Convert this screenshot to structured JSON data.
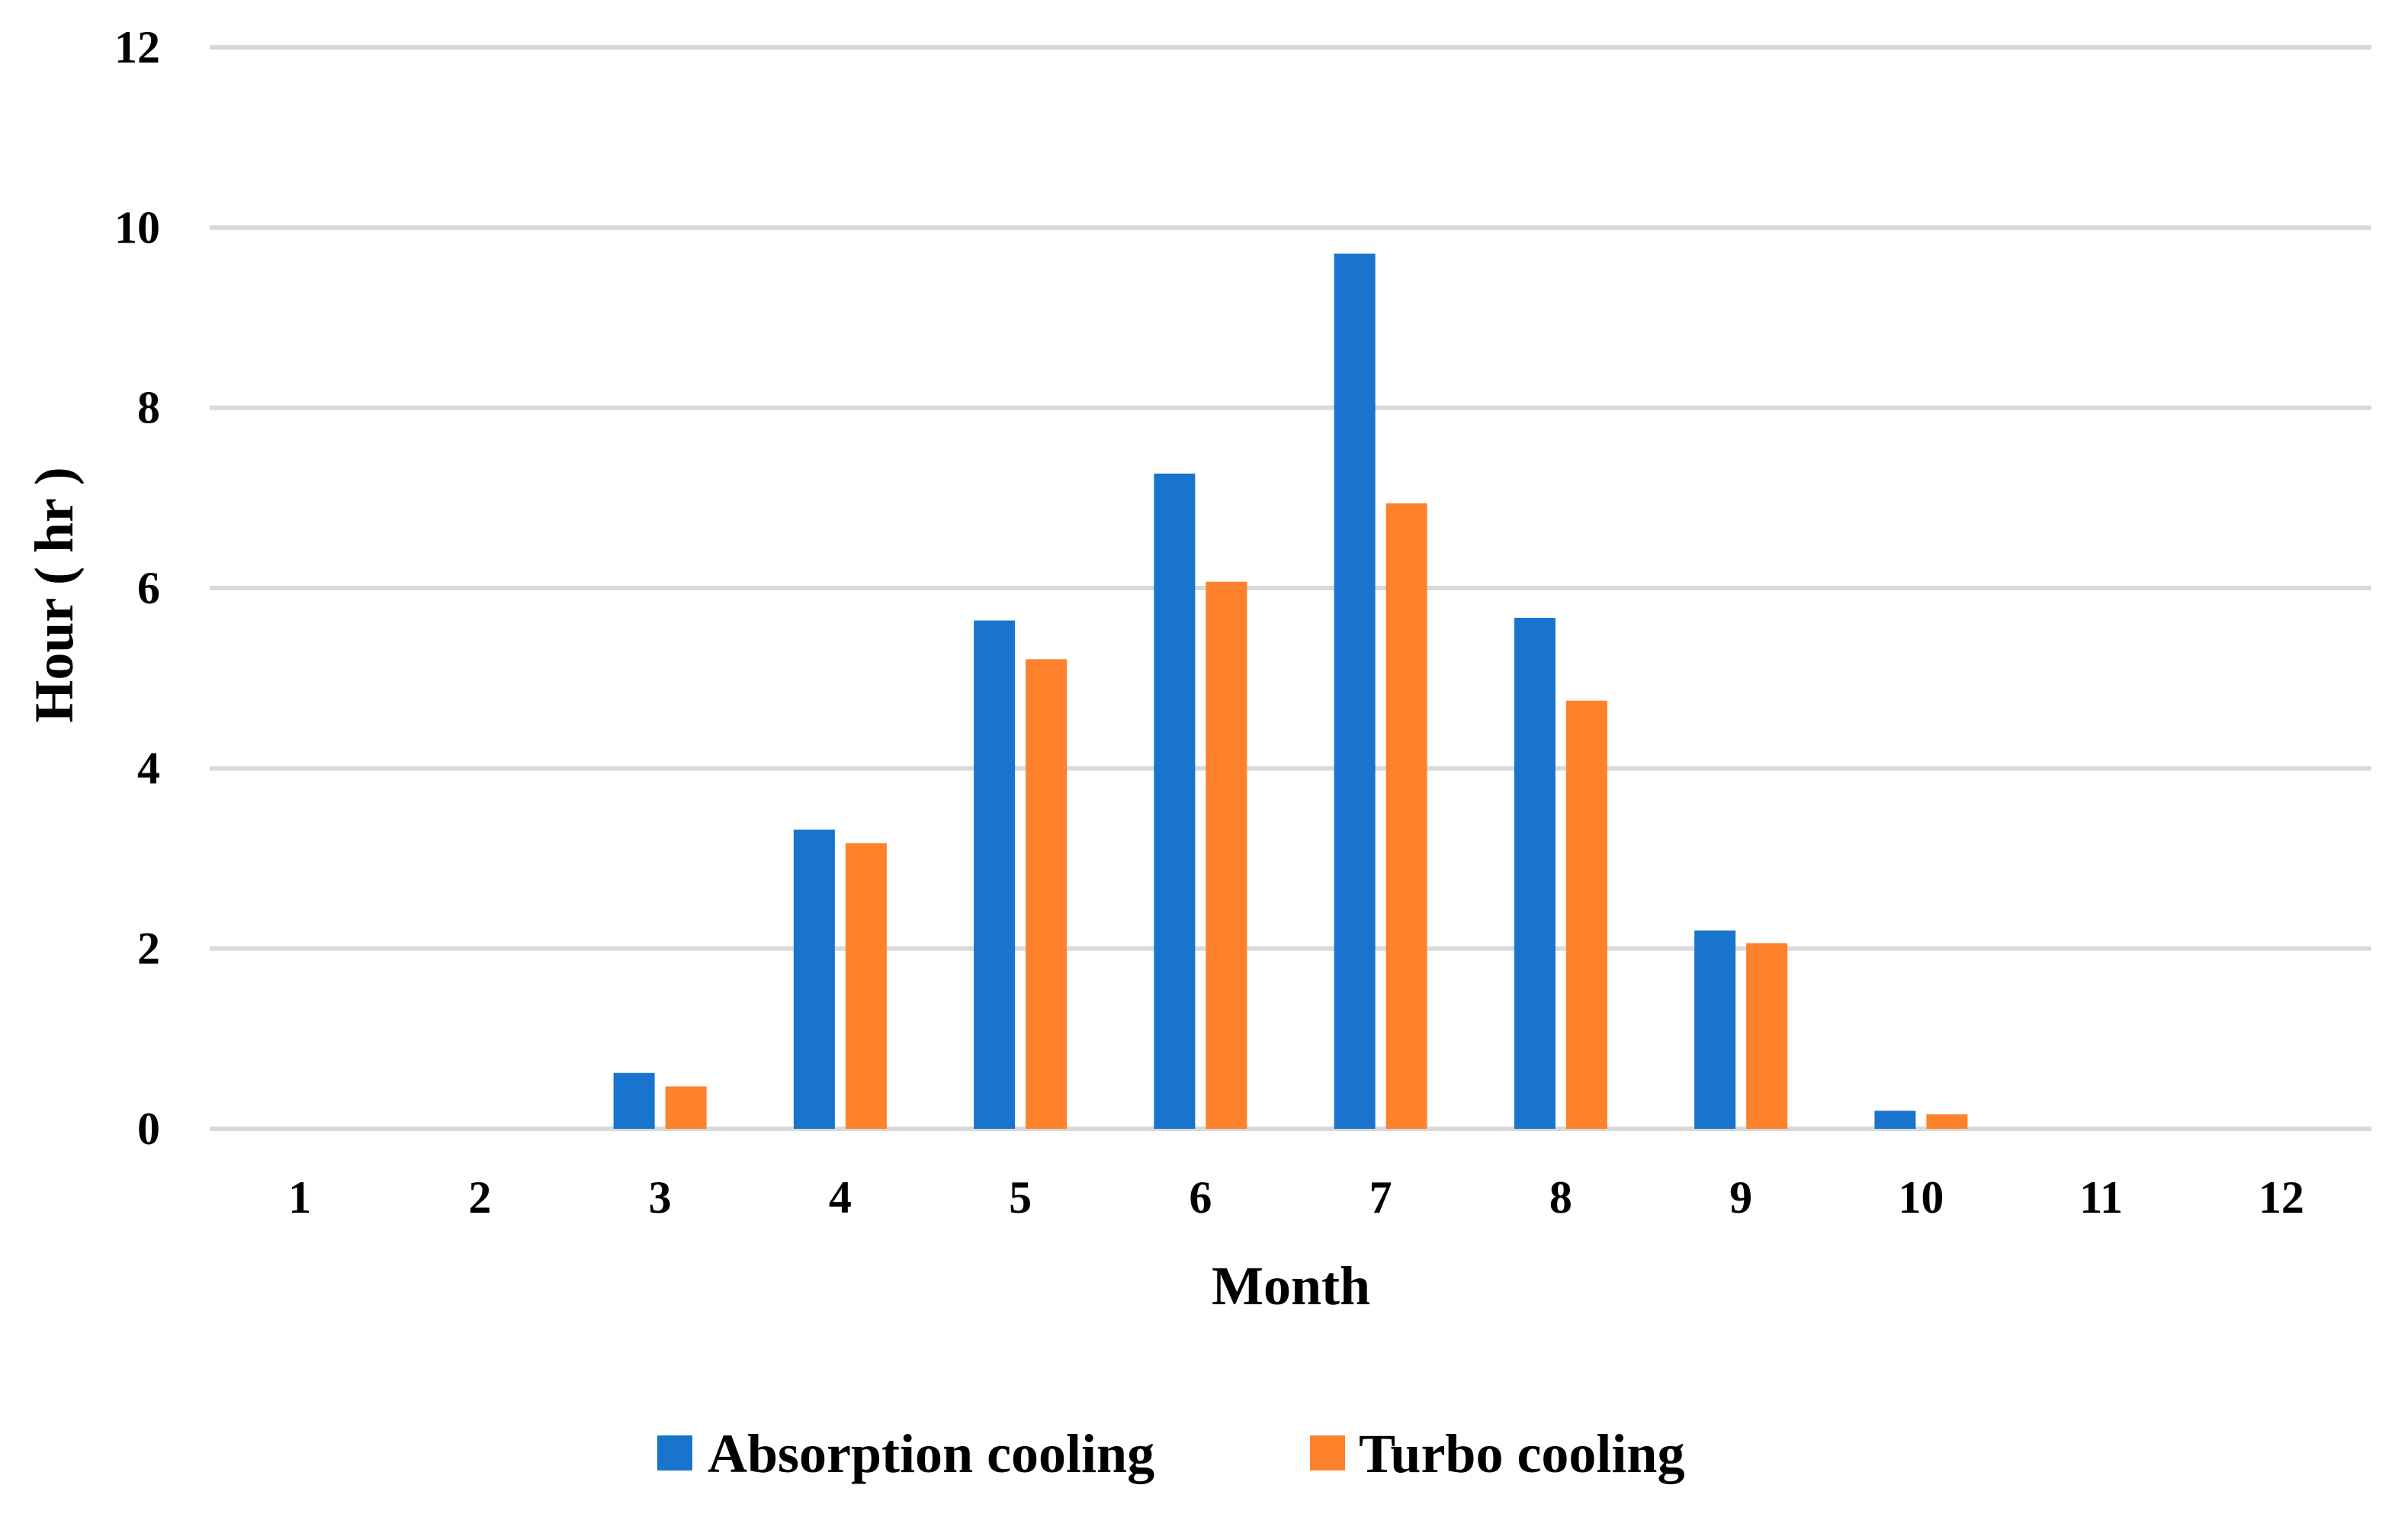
{
  "chart_data": {
    "type": "bar",
    "title": "",
    "xlabel": "Month",
    "ylabel": "Hour ( hr )",
    "ylim": [
      0,
      12
    ],
    "yticks": [
      0,
      2,
      4,
      6,
      8,
      10,
      12
    ],
    "grid": true,
    "legend_position": "bottom",
    "categories": [
      "1",
      "2",
      "3",
      "4",
      "5",
      "6",
      "7",
      "8",
      "9",
      "10",
      "11",
      "12"
    ],
    "series": [
      {
        "name": "Absorption cooling",
        "color": "#1874cd",
        "values": [
          0,
          0,
          0.62,
          3.32,
          5.64,
          7.27,
          9.71,
          5.67,
          2.2,
          0.2,
          0,
          0
        ]
      },
      {
        "name": "Turbo cooling",
        "color": "#fd822b",
        "values": [
          0,
          0,
          0.47,
          3.17,
          5.21,
          6.07,
          6.94,
          4.75,
          2.06,
          0.16,
          0,
          0
        ]
      }
    ]
  }
}
